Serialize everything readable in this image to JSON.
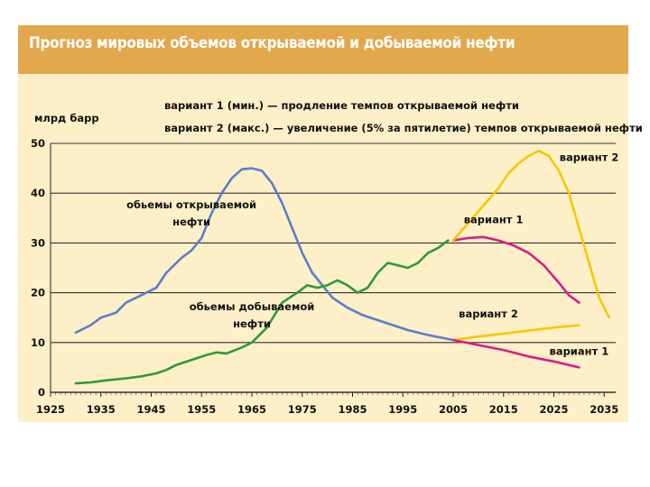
{
  "chart_data": {
    "type": "line",
    "title": "Прогноз мировых объемов открываемой и добываемой нефти",
    "ylabel": "млрд барр",
    "xlim": [
      1925,
      2038
    ],
    "ylim": [
      0,
      50
    ],
    "x_ticks": [
      "1925",
      "1935",
      "1945",
      "1955",
      "1965",
      "1975",
      "1985",
      "1995",
      "2005",
      "2015",
      "2025",
      "2035"
    ],
    "y_ticks": [
      "0",
      "10",
      "20",
      "30",
      "40",
      "50"
    ],
    "grid": "horizontal",
    "legend_notes": [
      "вариант 1 (мин.) — продление темпов открываемой нефти",
      "вариант 2 (макс.) — увеличение (5% за пятилетие) темпов открываемой нефти"
    ],
    "series": [
      {
        "name": "обьемы открываемой нефти",
        "color": "#5b7fc9",
        "points": [
          [
            1930,
            12
          ],
          [
            1933,
            13.5
          ],
          [
            1935,
            15
          ],
          [
            1938,
            16
          ],
          [
            1940,
            18
          ],
          [
            1943,
            19.5
          ],
          [
            1946,
            21
          ],
          [
            1948,
            24
          ],
          [
            1951,
            27
          ],
          [
            1953,
            28.5
          ],
          [
            1955,
            31
          ],
          [
            1957,
            36
          ],
          [
            1959,
            40
          ],
          [
            1961,
            43
          ],
          [
            1963,
            44.8
          ],
          [
            1965,
            45
          ],
          [
            1967,
            44.5
          ],
          [
            1969,
            42
          ],
          [
            1971,
            38
          ],
          [
            1973,
            33
          ],
          [
            1975,
            28
          ],
          [
            1977,
            24
          ],
          [
            1979,
            21.5
          ],
          [
            1981,
            19
          ],
          [
            1984,
            17
          ],
          [
            1987,
            15.5
          ],
          [
            1990,
            14.5
          ],
          [
            1993,
            13.5
          ],
          [
            1996,
            12.5
          ],
          [
            2000,
            11.5
          ],
          [
            2005,
            10.5
          ]
        ]
      },
      {
        "name": "обьемы добываемой нефти",
        "color": "#2e9a3a",
        "points": [
          [
            1930,
            1.8
          ],
          [
            1933,
            2
          ],
          [
            1936,
            2.4
          ],
          [
            1940,
            2.8
          ],
          [
            1943,
            3.2
          ],
          [
            1946,
            3.8
          ],
          [
            1948,
            4.5
          ],
          [
            1950,
            5.5
          ],
          [
            1953,
            6.5
          ],
          [
            1956,
            7.5
          ],
          [
            1958,
            8
          ],
          [
            1960,
            7.8
          ],
          [
            1963,
            9
          ],
          [
            1965,
            10
          ],
          [
            1968,
            13
          ],
          [
            1971,
            18
          ],
          [
            1974,
            20
          ],
          [
            1976,
            21.5
          ],
          [
            1978,
            21
          ],
          [
            1980,
            21.5
          ],
          [
            1982,
            22.5
          ],
          [
            1984,
            21.5
          ],
          [
            1986,
            20
          ],
          [
            1988,
            21
          ],
          [
            1990,
            24
          ],
          [
            1992,
            26
          ],
          [
            1994,
            25.5
          ],
          [
            1996,
            25
          ],
          [
            1998,
            26
          ],
          [
            2000,
            28
          ],
          [
            2002,
            29
          ],
          [
            2004,
            30.5
          ]
        ]
      },
      {
        "name": "вариант 1",
        "color": "#d41f8a",
        "points": [
          [
            2005,
            30.5
          ],
          [
            2008,
            31
          ],
          [
            2011,
            31.2
          ],
          [
            2014,
            30.5
          ],
          [
            2017,
            29.5
          ],
          [
            2020,
            28
          ],
          [
            2023,
            25.5
          ],
          [
            2026,
            22
          ],
          [
            2028,
            19.5
          ],
          [
            2030,
            18
          ]
        ]
      },
      {
        "name": "вариант 2",
        "color": "#f5c800",
        "points": [
          [
            2005,
            30.5
          ],
          [
            2008,
            34
          ],
          [
            2011,
            37.5
          ],
          [
            2014,
            41
          ],
          [
            2016,
            44
          ],
          [
            2018,
            46
          ],
          [
            2020,
            47.5
          ],
          [
            2022,
            48.5
          ],
          [
            2024,
            47.5
          ],
          [
            2026,
            44.5
          ],
          [
            2028,
            40
          ],
          [
            2030,
            33
          ],
          [
            2032,
            26
          ],
          [
            2034,
            19
          ],
          [
            2036,
            15
          ]
        ]
      },
      {
        "name": "вариант 2",
        "color": "#f5c800",
        "points": [
          [
            2005,
            10.5
          ],
          [
            2010,
            11.2
          ],
          [
            2015,
            11.8
          ],
          [
            2020,
            12.4
          ],
          [
            2025,
            13
          ],
          [
            2030,
            13.5
          ]
        ]
      },
      {
        "name": "вариант 1",
        "color": "#d41f8a",
        "points": [
          [
            2005,
            10.5
          ],
          [
            2010,
            9.5
          ],
          [
            2015,
            8.5
          ],
          [
            2020,
            7.2
          ],
          [
            2025,
            6.2
          ],
          [
            2030,
            5
          ]
        ]
      }
    ],
    "annotations": [
      {
        "text": "обьемы открываемой",
        "x": 1953,
        "y": 37
      },
      {
        "text": "нефти",
        "x": 1953,
        "y": 33.5
      },
      {
        "text": "обьемы добываемой",
        "x": 1965,
        "y": 16.5
      },
      {
        "text": "нефти",
        "x": 1965,
        "y": 13
      },
      {
        "text": "вариант 2",
        "x": 2032,
        "y": 46.5
      },
      {
        "text": "вариант 1",
        "x": 2013,
        "y": 34
      },
      {
        "text": "вариант 2",
        "x": 2012,
        "y": 15
      },
      {
        "text": "вариант 1",
        "x": 2030,
        "y": 7.5
      }
    ]
  },
  "colors": {
    "background": "#fdefc8",
    "title_bar": "#e1a84e",
    "grid": "#333333"
  }
}
